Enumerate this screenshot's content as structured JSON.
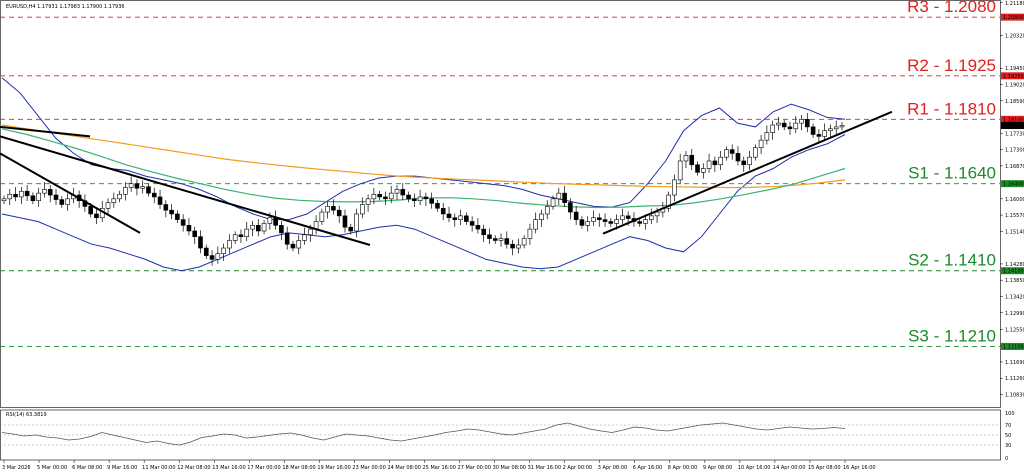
{
  "header": {
    "symbol_info": "EURUSD,H4  1.17931 1.17983 1.17900 1.17936"
  },
  "rsi_header": "RSI(14) 63.3819",
  "colors": {
    "resistance": "#e02020",
    "support": "#1d8a2a",
    "candle": "#000000",
    "bollinger": "#1f2fa8",
    "ma_long": "#f39c1e",
    "ma_mid": "#3cb371",
    "trendline": "#000000",
    "rsi": "#555555"
  },
  "chart_data": {
    "type": "candlestick",
    "title": "EURUSD,H4",
    "ylim": [
      1.105,
      1.212
    ],
    "price_ticks": [
      "1.21180",
      "1.20320",
      "1.19450",
      "1.19020",
      "1.18590",
      "1.17730",
      "1.17300",
      "1.16870",
      "1.16000",
      "1.15570",
      "1.15140",
      "1.14280",
      "1.13850",
      "1.13420",
      "1.12990",
      "1.12550",
      "1.12120",
      "1.11690",
      "1.11260",
      "1.10830"
    ],
    "date_ticks": [
      "3 Mar 2026",
      "5 Mar 00:00",
      "6 Mar 08:00",
      "9 Mar 16:00",
      "11 Mar 00:00",
      "12 Mar 08:00",
      "13 Mar 16:00",
      "17 Mar 00:00",
      "18 Mar 08:00",
      "19 Mar 16:00",
      "23 Mar 00:00",
      "24 Mar 08:00",
      "25 Mar 16:00",
      "27 Mar 00:00",
      "30 Mar 08:00",
      "31 Mar 16:00",
      "2 Apr 00:00",
      "3 Apr 08:00",
      "6 Apr 16:00",
      "8 Apr 00:00",
      "9 Apr 08:00",
      "10 Apr 16:00",
      "14 Apr 00:00",
      "15 Apr 08:00",
      "16 Apr 16:00"
    ],
    "levels": [
      {
        "label": "R3 - 1.2080",
        "value": 1.208,
        "kind": "resistance"
      },
      {
        "label": "R2 - 1.1925",
        "value": 1.1925,
        "kind": "resistance"
      },
      {
        "label": "R1 - 1.1810",
        "value": 1.181,
        "kind": "resistance"
      },
      {
        "label": "S1 - 1.1640",
        "value": 1.164,
        "kind": "support"
      },
      {
        "label": "S2 - 1.1410",
        "value": 1.141,
        "kind": "support"
      },
      {
        "label": "S3 - 1.1210",
        "value": 1.121,
        "kind": "support"
      }
    ],
    "level_price_tags": [
      {
        "text": "1.20800",
        "value": 1.208
      },
      {
        "text": "1.19250",
        "value": 1.1925
      },
      {
        "text": "1.18100",
        "value": 1.181
      },
      {
        "text": "1.17936",
        "value": 1.17936
      },
      {
        "text": "1.16400",
        "value": 1.164
      },
      {
        "text": "1.14100",
        "value": 1.141
      },
      {
        "text": "1.12100",
        "value": 1.121
      }
    ],
    "close_series": [
      1.16,
      1.1612,
      1.1605,
      1.162,
      1.1608,
      1.1595,
      1.1615,
      1.1625,
      1.161,
      1.1598,
      1.1585,
      1.16,
      1.161,
      1.1595,
      1.158,
      1.156,
      1.155,
      1.1575,
      1.159,
      1.16,
      1.1612,
      1.163,
      1.164,
      1.1628,
      1.1632,
      1.1615,
      1.1605,
      1.1585,
      1.157,
      1.156,
      1.1545,
      1.153,
      1.1515,
      1.15,
      1.147,
      1.145,
      1.144,
      1.1455,
      1.147,
      1.149,
      1.1505,
      1.15,
      1.152,
      1.153,
      1.1515,
      1.1535,
      1.155,
      1.153,
      1.151,
      1.148,
      1.147,
      1.149,
      1.1505,
      1.152,
      1.154,
      1.1565,
      1.158,
      1.157,
      1.1555,
      1.1525,
      1.1515,
      1.156,
      1.1585,
      1.16,
      1.1612,
      1.1605,
      1.16,
      1.1615,
      1.1625,
      1.161,
      1.16,
      1.1595,
      1.1605,
      1.16,
      1.1588,
      1.1575,
      1.156,
      1.155,
      1.1545,
      1.1555,
      1.154,
      1.153,
      1.152,
      1.1505,
      1.1495,
      1.149,
      1.1495,
      1.148,
      1.147,
      1.1478,
      1.1495,
      1.152,
      1.1545,
      1.156,
      1.158,
      1.16,
      1.1615,
      1.159,
      1.1565,
      1.1545,
      1.153,
      1.154,
      1.155,
      1.1545,
      1.154,
      1.1535,
      1.1545,
      1.1555,
      1.1548,
      1.154,
      1.1535,
      1.1545,
      1.1555,
      1.1565,
      1.1575,
      1.161,
      1.165,
      1.17,
      1.1715,
      1.169,
      1.167,
      1.168,
      1.17,
      1.169,
      1.171,
      1.173,
      1.172,
      1.17,
      1.169,
      1.171,
      1.1735,
      1.1755,
      1.1775,
      1.1795,
      1.18,
      1.179,
      1.1785,
      1.18,
      1.181,
      1.179,
      1.177,
      1.1765,
      1.178,
      1.1785,
      1.179,
      1.1794
    ],
    "bollinger_upper": [
      1.192,
      1.188,
      1.182,
      1.176,
      1.172,
      1.169,
      1.168,
      1.1675,
      1.166,
      1.165,
      1.164,
      1.1625,
      1.1605,
      1.158,
      1.156,
      1.1545,
      1.1545,
      1.156,
      1.159,
      1.162,
      1.164,
      1.1655,
      1.166,
      1.166,
      1.1655,
      1.165,
      1.1645,
      1.164,
      1.1635,
      1.1625,
      1.161,
      1.16,
      1.159,
      1.158,
      1.1578,
      1.159,
      1.164,
      1.17,
      1.178,
      1.182,
      1.184,
      1.18,
      1.179,
      1.183,
      1.185,
      1.1835,
      1.1815,
      1.181
    ],
    "bollinger_lower": [
      1.156,
      1.155,
      1.154,
      1.152,
      1.15,
      1.148,
      1.147,
      1.1455,
      1.144,
      1.142,
      1.141,
      1.142,
      1.144,
      1.146,
      1.148,
      1.15,
      1.151,
      1.1505,
      1.15,
      1.1505,
      1.1515,
      1.1525,
      1.153,
      1.152,
      1.15,
      1.148,
      1.146,
      1.144,
      1.143,
      1.142,
      1.1415,
      1.142,
      1.144,
      1.146,
      1.148,
      1.15,
      1.149,
      1.147,
      1.146,
      1.15,
      1.156,
      1.162,
      1.166,
      1.168,
      1.171,
      1.173,
      1.1745,
      1.177
    ],
    "ma_long": [
      1.1795,
      1.1785,
      1.1775,
      1.1765,
      1.1755,
      1.1745,
      1.1735,
      1.1725,
      1.1715,
      1.1705,
      1.1697,
      1.169,
      1.1683,
      1.1677,
      1.1671,
      1.1665,
      1.166,
      1.1656,
      1.1653,
      1.165,
      1.1647,
      1.1644,
      1.1641,
      1.1639,
      1.1637,
      1.1635,
      1.1633,
      1.1632,
      1.1631,
      1.163,
      1.163,
      1.1632,
      1.1636,
      1.1642,
      1.165
    ],
    "ma_mid": [
      1.1785,
      1.177,
      1.1752,
      1.1733,
      1.1712,
      1.169,
      1.1672,
      1.1655,
      1.164,
      1.1625,
      1.1612,
      1.1602,
      1.1596,
      1.1593,
      1.1592,
      1.1593,
      1.1597,
      1.1602,
      1.1603,
      1.16,
      1.1595,
      1.1588,
      1.1583,
      1.1579,
      1.1577,
      1.1578,
      1.1581,
      1.1583,
      1.159,
      1.16,
      1.1612,
      1.1625,
      1.164,
      1.166,
      1.168
    ],
    "rsi": {
      "label": "RSI(14)",
      "value": 63.3819,
      "levels": [
        30,
        50,
        70
      ],
      "ylim": [
        0,
        100
      ],
      "series": [
        55,
        52,
        48,
        50,
        46,
        44,
        40,
        42,
        47,
        55,
        50,
        45,
        40,
        35,
        38,
        33,
        30,
        36,
        45,
        48,
        52,
        50,
        44,
        46,
        49,
        52,
        54,
        50,
        44,
        40,
        46,
        52,
        50,
        48,
        44,
        40,
        38,
        42,
        46,
        50,
        55,
        58,
        62,
        60,
        56,
        52,
        50,
        54,
        58,
        62,
        70,
        74,
        68,
        62,
        58,
        55,
        60,
        66,
        64,
        60,
        58,
        62,
        66,
        70,
        72,
        74,
        70,
        66,
        62,
        60,
        63,
        66,
        64,
        62,
        63,
        65,
        63
      ]
    }
  }
}
